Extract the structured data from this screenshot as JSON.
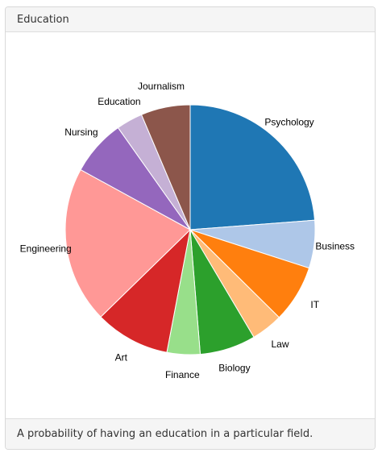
{
  "panel": {
    "title": "Education",
    "footer": "A probability of having an education in a particular field."
  },
  "chart_data": {
    "type": "pie",
    "title": "",
    "start": "12 o'clock, clockwise",
    "slices": [
      {
        "label": "Psychology",
        "value": 25.0,
        "color": "#1f77b4"
      },
      {
        "label": "Business",
        "value": 6.5,
        "color": "#aec7e8"
      },
      {
        "label": "IT",
        "value": 7.8,
        "color": "#ff7f0e"
      },
      {
        "label": "Law",
        "value": 4.3,
        "color": "#ffbb78"
      },
      {
        "label": "Biology",
        "value": 7.6,
        "color": "#2ca02c"
      },
      {
        "label": "Finance",
        "value": 4.5,
        "color": "#98df8a"
      },
      {
        "label": "Art",
        "value": 10.2,
        "color": "#d62728"
      },
      {
        "label": "Engineering",
        "value": 21.3,
        "color": "#ff9896"
      },
      {
        "label": "Nursing",
        "value": 7.6,
        "color": "#9467bd"
      },
      {
        "label": "Education",
        "value": 3.6,
        "color": "#c5b0d5"
      },
      {
        "label": "Journalism",
        "value": 6.7,
        "color": "#8c564b"
      }
    ]
  }
}
